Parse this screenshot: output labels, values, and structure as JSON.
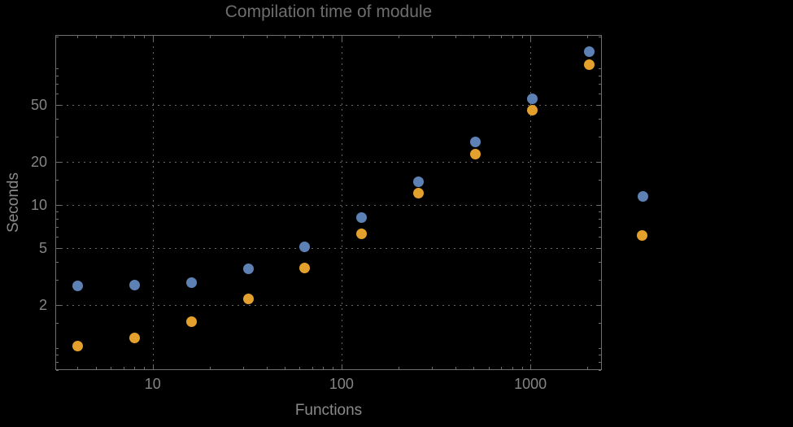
{
  "title": "Compilation time of module",
  "colors": {
    "background": "#000000",
    "title": "#6e6e6e",
    "tick_labels": "#858585",
    "axis_labels": "#8a8a8a",
    "frame": "#6e6e6e",
    "grid": "#666666"
  },
  "chart_data": {
    "type": "scatter",
    "title": "Compilation time of module",
    "xlabel": "Functions",
    "ylabel": "Seconds",
    "x_scale": "log",
    "y_scale": "log",
    "xlim": [
      3.05,
      2390
    ],
    "ylim": [
      0.7,
      154
    ],
    "grid": "dotted",
    "legend_position": "right-outside",
    "x": [
      4,
      8,
      16,
      32,
      64,
      128,
      256,
      512,
      1024,
      2048
    ],
    "series": [
      {
        "name": "blue-series",
        "color": "#5e81b5",
        "values": [
          2.7,
          2.75,
          2.85,
          3.55,
          5.1,
          8.2,
          14.5,
          27.5,
          55,
          117
        ]
      },
      {
        "name": "orange-series",
        "color": "#e3a02c",
        "values": [
          1.03,
          1.18,
          1.52,
          2.2,
          3.6,
          6.3,
          12,
          22.5,
          46,
          96
        ]
      }
    ],
    "x_ticks": [
      {
        "value": 10,
        "label": "10"
      },
      {
        "value": 100,
        "label": "100"
      },
      {
        "value": 1000,
        "label": "1000"
      }
    ],
    "y_ticks": [
      {
        "value": 2,
        "label": "2"
      },
      {
        "value": 5,
        "label": "5"
      },
      {
        "value": 10,
        "label": "10"
      },
      {
        "value": 20,
        "label": "20"
      },
      {
        "value": 50,
        "label": "50"
      }
    ],
    "x_minor_ticks": [
      4,
      5,
      6,
      7,
      8,
      9,
      20,
      30,
      40,
      50,
      60,
      70,
      80,
      90,
      200,
      300,
      400,
      500,
      600,
      700,
      800,
      900,
      2000
    ],
    "y_minor_ticks": [
      0.7,
      0.8,
      0.9,
      1,
      1.5,
      3,
      4,
      6,
      7,
      8,
      9,
      15,
      30,
      40,
      60,
      70,
      80,
      90,
      150
    ],
    "legend_markers": [
      {
        "name": "blue",
        "color": "#5e81b5",
        "label": ""
      },
      {
        "name": "orange",
        "color": "#e3a02c",
        "label": ""
      }
    ]
  }
}
